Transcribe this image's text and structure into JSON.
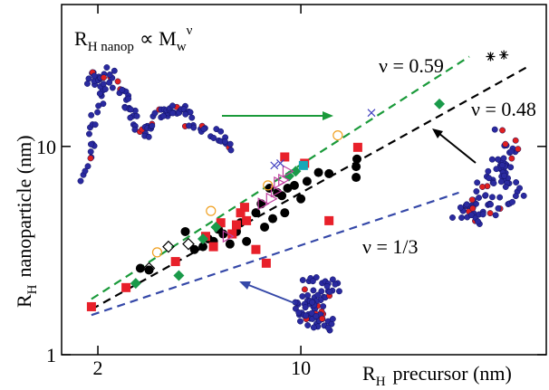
{
  "chart_data": {
    "type": "scatter",
    "log_x": true,
    "log_y": true,
    "xlim": [
      1.5,
      70
    ],
    "ylim": [
      1,
      48
    ],
    "xticks": [
      2,
      10
    ],
    "yticks": [
      1,
      10
    ],
    "x_label": [
      "R",
      "H",
      "precursor (nm)"
    ],
    "y_label": [
      "R",
      "H",
      "nanoparticle (nm)"
    ],
    "formula": [
      "R",
      "H nanop",
      "∝ M",
      "w",
      "ν"
    ],
    "lines": [
      {
        "label": "ν = 0.59",
        "color": "#1a9a3a",
        "x": [
          1.9,
          38
        ],
        "values": [
          1.85,
          27
        ]
      },
      {
        "label": "ν = 0.48",
        "color": "#000000",
        "x": [
          1.9,
          60
        ],
        "values": [
          1.65,
          24
        ]
      },
      {
        "label": "ν = 1/3",
        "color": "#3548a8",
        "x": [
          1.9,
          35
        ],
        "values": [
          1.55,
          6
        ]
      }
    ],
    "series": [
      {
        "color": "#000000",
        "marker": "circle",
        "x": [
          2.8,
          3.0,
          4.0,
          4.3,
          4.6,
          4.8,
          5.0,
          5.2,
          5.4,
          5.7,
          6.0,
          6.2,
          6.5,
          7.0,
          7.3,
          7.5,
          8.0,
          8.6,
          9.0,
          9.5,
          10.0,
          10.5,
          11.5,
          12.5,
          15.5,
          15.5,
          15.6,
          7.8,
          8.3,
          8.8
        ],
        "values": [
          2.6,
          2.55,
          3.9,
          3.2,
          3.3,
          3.6,
          3.5,
          4.0,
          3.8,
          3.4,
          3.9,
          4.3,
          3.5,
          4.8,
          5.3,
          4.1,
          4.5,
          5.8,
          6.3,
          6.5,
          5.6,
          6.8,
          7.5,
          7.4,
          8.0,
          7.1,
          8.7,
          6.3,
          6.0,
          4.8
        ]
      },
      {
        "color": "#e8202a",
        "marker": "square",
        "x": [
          1.9,
          2.5,
          3.7,
          4.7,
          5.0,
          5.3,
          6.0,
          6.2,
          6.4,
          6.5,
          7.0,
          7.6,
          8.8,
          10.3,
          12.5,
          15.7,
          5.8
        ],
        "values": [
          1.7,
          2.1,
          2.8,
          3.7,
          3.3,
          4.3,
          4.2,
          4.8,
          5.1,
          4.4,
          3.2,
          2.75,
          8.9,
          8.3,
          4.4,
          9.9,
          3.8
        ]
      },
      {
        "color": "#1a9a4a",
        "marker": "diamond",
        "x": [
          2.7,
          3.8,
          4.6,
          9.1,
          9.6,
          30.0,
          5.1
        ],
        "values": [
          2.2,
          2.4,
          3.6,
          7.2,
          7.6,
          16,
          4.1
        ]
      },
      {
        "color": "#18a8b8",
        "marker": "square",
        "x": [
          10.2
        ],
        "values": [
          8.1
        ]
      },
      {
        "color": "#c040a0",
        "marker": "open-triangle",
        "x": [
          7.4,
          7.9,
          8.2,
          8.4,
          8.7,
          9.0,
          5.6
        ],
        "values": [
          5.3,
          5.6,
          6.1,
          6.7,
          6.9,
          7.6,
          3.7
        ]
      },
      {
        "color": "#f0a020",
        "marker": "open-circle",
        "x": [
          4.9,
          7.7,
          13.4,
          3.2
        ],
        "values": [
          4.9,
          6.5,
          11.3,
          3.1
        ]
      },
      {
        "color": "#4040c0",
        "marker": "cross",
        "x": [
          8.1,
          8.5,
          17.5
        ],
        "values": [
          8.1,
          8.3,
          14.5
        ]
      },
      {
        "color": "#000000",
        "marker": "open-diamond",
        "x": [
          3.0,
          3.5,
          4.1
        ],
        "values": [
          2.6,
          3.3,
          3.4
        ]
      },
      {
        "color": "#000000",
        "marker": "asterisk",
        "x": [
          45,
          50
        ],
        "values": [
          27,
          27.5
        ]
      }
    ]
  }
}
